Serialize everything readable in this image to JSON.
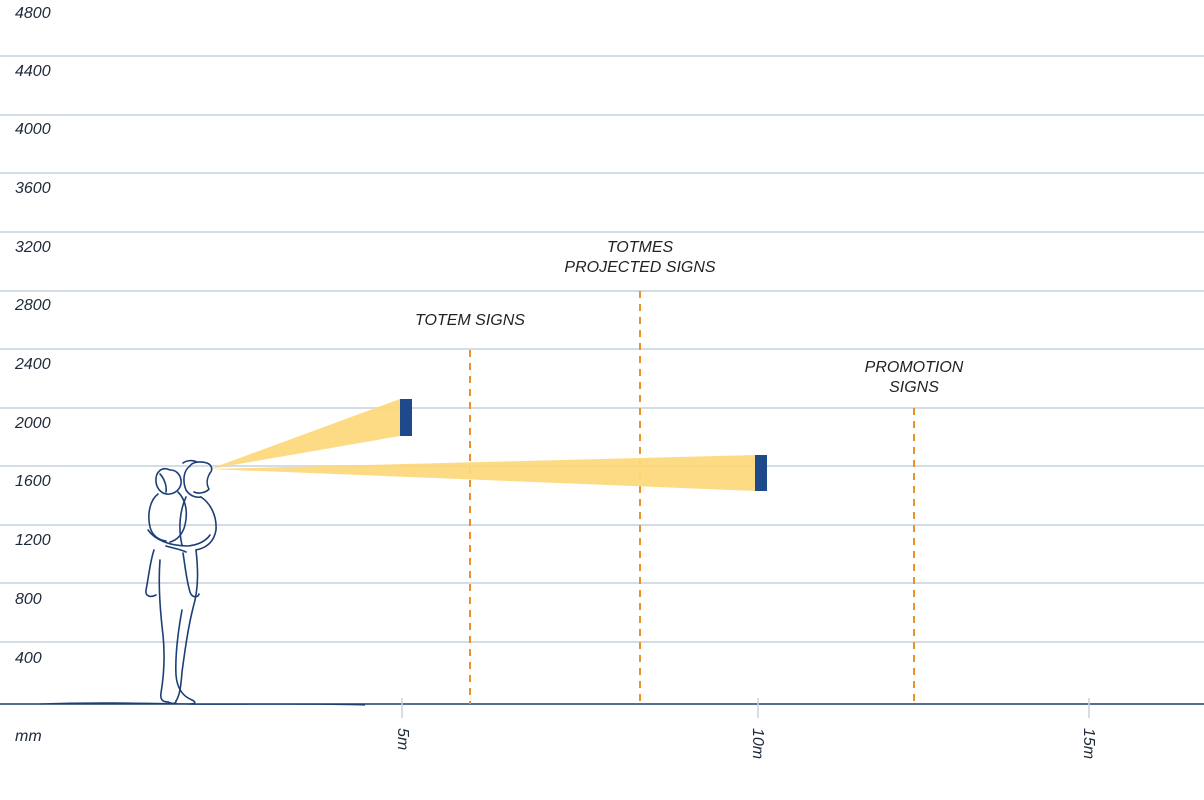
{
  "axis": {
    "unit": "mm",
    "y_ticks": [
      "4800",
      "4400",
      "4000",
      "3600",
      "3200",
      "2800",
      "2400",
      "2000",
      "1600",
      "1200",
      "800",
      "400"
    ],
    "x_ticks": [
      "5m",
      "10m",
      "15m"
    ]
  },
  "categories": [
    {
      "lines": [
        "TOTEM SIGNS"
      ]
    },
    {
      "lines": [
        "TOTMES",
        "PROJECTED SIGNS"
      ]
    },
    {
      "lines": [
        "PROMOTION",
        "SIGNS"
      ]
    }
  ],
  "colors": {
    "grid": "#d4dde7",
    "ground": "#1f3f73",
    "guide": "#e8932a",
    "beam": "#fdd77a",
    "sign": "#1e4a8c",
    "figure": "#1c3f78"
  },
  "sign_boards": [
    {
      "distance_m": 5,
      "height_range_mm": [
        1850,
        2100
      ]
    },
    {
      "distance_m": 10,
      "height_range_mm": [
        1520,
        1770
      ]
    }
  ],
  "eye_level_mm": 1600,
  "icons": [
    "person-carrying-child-icon"
  ]
}
